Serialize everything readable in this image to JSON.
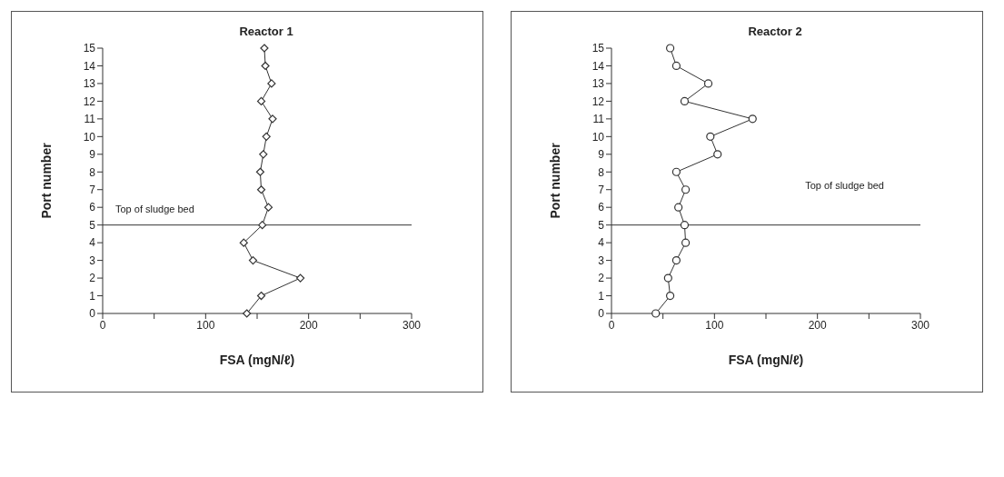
{
  "chart_data": [
    {
      "type": "line",
      "title": "Reactor 1",
      "xlabel": "FSA (mgN/ℓ)",
      "ylabel": "Port number",
      "marker": "diamond",
      "xlim": [
        0,
        300
      ],
      "xticks": [
        0,
        {
          "value": 50,
          "label": null
        },
        100,
        {
          "value": 150,
          "label": null
        },
        200,
        {
          "value": 250,
          "label": null
        },
        300
      ],
      "ylim": [
        0,
        15
      ],
      "yticks": [
        0,
        1,
        2,
        3,
        4,
        5,
        6,
        7,
        8,
        9,
        10,
        11,
        12,
        13,
        14,
        15
      ],
      "series": [
        {
          "color": "#333333",
          "x": [
            140,
            154,
            192,
            146,
            137,
            155,
            161,
            154,
            153,
            156,
            159,
            165,
            154,
            164,
            158,
            157
          ],
          "values": [
            0,
            1,
            2,
            3,
            4,
            5,
            6,
            7,
            8,
            9,
            10,
            11,
            12,
            13,
            14,
            15
          ]
        }
      ],
      "ref_lines": [
        {
          "axis": "y",
          "value": 5,
          "label": "Top of sludge bed",
          "color": "#333333"
        }
      ]
    },
    {
      "type": "line",
      "title": "Reactor 2",
      "xlabel": "FSA (mgN/ℓ)",
      "ylabel": "Port number",
      "marker": "circle",
      "xlim": [
        0,
        300
      ],
      "xticks": [
        0,
        {
          "value": 50,
          "label": null
        },
        100,
        {
          "value": 150,
          "label": null
        },
        200,
        {
          "value": 250,
          "label": null
        },
        300
      ],
      "ylim": [
        0,
        15
      ],
      "yticks": [
        0,
        1,
        2,
        3,
        4,
        5,
        6,
        7,
        8,
        9,
        10,
        11,
        12,
        13,
        14,
        15
      ],
      "series": [
        {
          "color": "#333333",
          "x": [
            43,
            57,
            55,
            63,
            72,
            71,
            65,
            72,
            63,
            103,
            96,
            137,
            71,
            94,
            63,
            57
          ],
          "values": [
            0,
            1,
            2,
            3,
            4,
            5,
            6,
            7,
            8,
            9,
            10,
            11,
            12,
            13,
            14,
            15
          ]
        }
      ],
      "ref_lines": [
        {
          "axis": "y",
          "value": 5,
          "label": "Top of sludge bed",
          "color": "#333333"
        }
      ]
    }
  ]
}
